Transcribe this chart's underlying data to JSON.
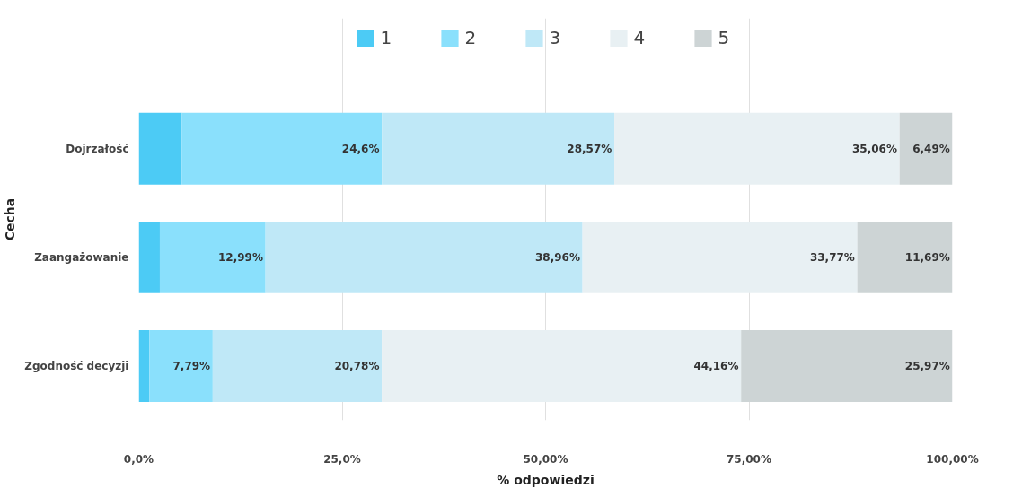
{
  "chart_data": {
    "type": "bar",
    "orientation": "horizontal",
    "stacked": true,
    "categories": [
      "Dojrzałość",
      "Zaangażowanie",
      "Zgodność decyzji"
    ],
    "series": [
      {
        "name": "1",
        "color": "#4ccbf5",
        "values": [
          5.28,
          2.59,
          1.3
        ]
      },
      {
        "name": "2",
        "color": "#8ae0fc",
        "values": [
          24.6,
          12.99,
          7.79
        ],
        "value_labels": [
          "24,6%",
          "12,99%",
          "7,79%"
        ]
      },
      {
        "name": "3",
        "color": "#bfe8f7",
        "values": [
          28.57,
          38.96,
          20.78
        ],
        "value_labels": [
          "28,57%",
          "38,96%",
          "20,78%"
        ]
      },
      {
        "name": "4",
        "color": "#e8f0f3",
        "values": [
          35.06,
          33.77,
          44.16
        ],
        "value_labels": [
          "35,06%",
          "33,77%",
          "44,16%"
        ]
      },
      {
        "name": "5",
        "color": "#cdd4d5",
        "values": [
          6.49,
          11.69,
          25.97
        ],
        "value_labels": [
          "6,49%",
          "11,69%",
          "25,97%"
        ]
      }
    ],
    "xlim": [
      0,
      100
    ],
    "xticks": [
      {
        "value": 0,
        "label": "0,0%"
      },
      {
        "value": 25,
        "label": "25,0%"
      },
      {
        "value": 50,
        "label": "50,00%"
      },
      {
        "value": 75,
        "label": "75,00%"
      },
      {
        "value": 100,
        "label": "100,00%"
      }
    ],
    "xlabel": "% odpowiedzi",
    "ylabel": "Cecha",
    "grid": "x",
    "legend": "top"
  }
}
